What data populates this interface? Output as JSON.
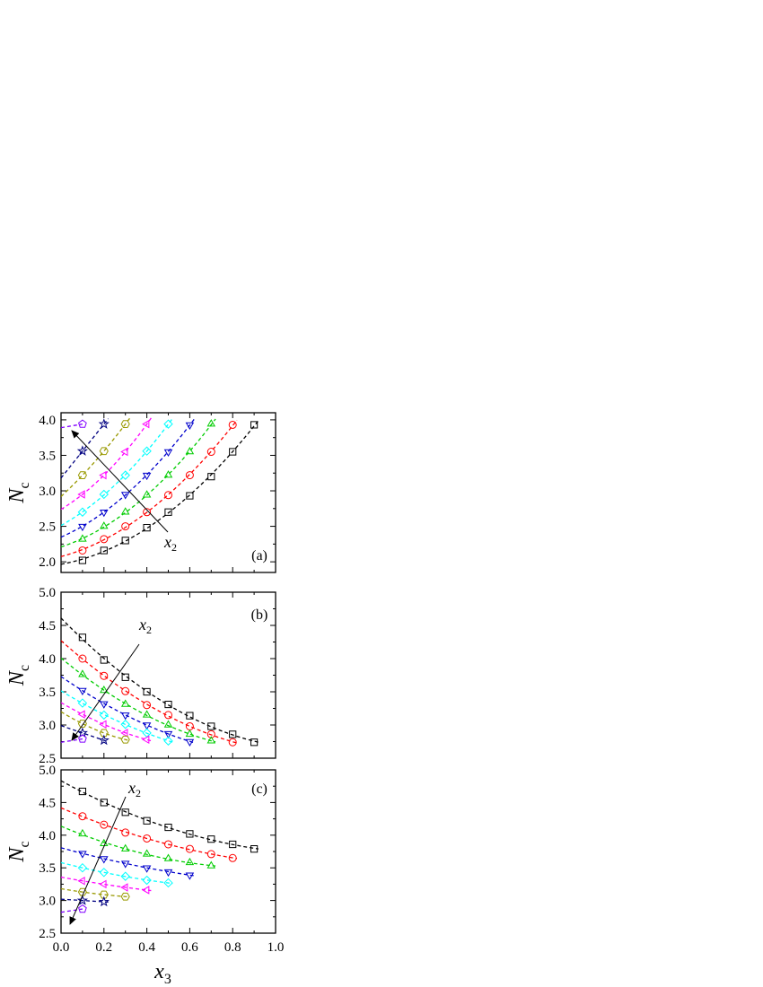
{
  "colors": [
    "#000000",
    "#ff0000",
    "#00cc00",
    "#0000cc",
    "#00ffff",
    "#ff00ff",
    "#999900",
    "#000080",
    "#8000ff"
  ],
  "markers": [
    "square",
    "circle",
    "triangle-up",
    "triangle-down",
    "diamond",
    "triangle-left",
    "hexagon",
    "star",
    "pentagon"
  ],
  "chart_data": [
    {
      "type": "scatter",
      "panel_label": "(a)",
      "xlabel": "",
      "ylabel": "N",
      "ylabel_sub": "c",
      "xlim": [
        0.0,
        1.0
      ],
      "ylim": [
        1.85,
        4.1
      ],
      "yticks": [
        "2.0",
        "2.5",
        "3.0",
        "3.5",
        "4.0"
      ],
      "arrow_label": "x",
      "arrow_label_sub": "2",
      "series": [
        {
          "x": [
            0.1,
            0.2,
            0.3,
            0.4,
            0.5,
            0.6,
            0.7,
            0.8,
            0.9
          ],
          "values": [
            2.02,
            2.16,
            2.3,
            2.48,
            2.7,
            2.93,
            3.2,
            3.55,
            3.93
          ]
        },
        {
          "x": [
            0.1,
            0.2,
            0.3,
            0.4,
            0.5,
            0.6,
            0.7,
            0.8
          ],
          "values": [
            2.16,
            2.32,
            2.5,
            2.7,
            2.94,
            3.22,
            3.55,
            3.93
          ]
        },
        {
          "x": [
            0.1,
            0.2,
            0.3,
            0.4,
            0.5,
            0.6,
            0.7
          ],
          "values": [
            2.32,
            2.5,
            2.7,
            2.94,
            3.22,
            3.55,
            3.94
          ]
        },
        {
          "x": [
            0.1,
            0.2,
            0.3,
            0.4,
            0.5,
            0.6
          ],
          "values": [
            2.5,
            2.7,
            2.95,
            3.22,
            3.55,
            3.93
          ]
        },
        {
          "x": [
            0.1,
            0.2,
            0.3,
            0.4,
            0.5
          ],
          "values": [
            2.7,
            2.95,
            3.22,
            3.56,
            3.94
          ]
        },
        {
          "x": [
            0.1,
            0.2,
            0.3,
            0.4
          ],
          "values": [
            2.95,
            3.22,
            3.55,
            3.94
          ]
        },
        {
          "x": [
            0.1,
            0.2,
            0.3
          ],
          "values": [
            3.22,
            3.56,
            3.94
          ]
        },
        {
          "x": [
            0.1,
            0.2
          ],
          "values": [
            3.56,
            3.94
          ]
        },
        {
          "x": [
            0.1
          ],
          "values": [
            3.94
          ]
        }
      ]
    },
    {
      "type": "scatter",
      "panel_label": "(b)",
      "xlabel": "",
      "ylabel": "N",
      "ylabel_sub": "c",
      "xlim": [
        0.0,
        1.0
      ],
      "ylim": [
        2.5,
        5.0
      ],
      "yticks": [
        "2.5",
        "3.0",
        "3.5",
        "4.0",
        "4.5",
        "5.0"
      ],
      "arrow_label": "x",
      "arrow_label_sub": "2",
      "series": [
        {
          "x": [
            0.1,
            0.2,
            0.3,
            0.4,
            0.5,
            0.6,
            0.7,
            0.8,
            0.9
          ],
          "values": [
            4.32,
            3.98,
            3.72,
            3.5,
            3.31,
            3.14,
            2.98,
            2.86,
            2.74
          ]
        },
        {
          "x": [
            0.1,
            0.2,
            0.3,
            0.4,
            0.5,
            0.6,
            0.7,
            0.8
          ],
          "values": [
            4.0,
            3.74,
            3.51,
            3.3,
            3.15,
            2.98,
            2.86,
            2.74
          ]
        },
        {
          "x": [
            0.1,
            0.2,
            0.3,
            0.4,
            0.5,
            0.6,
            0.7
          ],
          "values": [
            3.76,
            3.52,
            3.31,
            3.15,
            3.0,
            2.86,
            2.76
          ]
        },
        {
          "x": [
            0.1,
            0.2,
            0.3,
            0.4,
            0.5,
            0.6
          ],
          "values": [
            3.52,
            3.32,
            3.15,
            3.0,
            2.87,
            2.75
          ]
        },
        {
          "x": [
            0.1,
            0.2,
            0.3,
            0.4,
            0.5
          ],
          "values": [
            3.33,
            3.15,
            3.01,
            2.88,
            2.76
          ]
        },
        {
          "x": [
            0.1,
            0.2,
            0.3,
            0.4
          ],
          "values": [
            3.16,
            3.01,
            2.88,
            2.78
          ]
        },
        {
          "x": [
            0.1,
            0.2,
            0.3
          ],
          "values": [
            3.02,
            2.88,
            2.78
          ]
        },
        {
          "x": [
            0.1,
            0.2
          ],
          "values": [
            2.88,
            2.77
          ]
        },
        {
          "x": [
            0.1
          ],
          "values": [
            2.79
          ]
        }
      ]
    },
    {
      "type": "scatter",
      "panel_label": "(c)",
      "xlabel": "x",
      "xlabel_sub": "3",
      "ylabel": "N",
      "ylabel_sub": "c",
      "xlim": [
        0.0,
        1.0
      ],
      "ylim": [
        2.5,
        5.0
      ],
      "xticks": [
        "0.0",
        "0.2",
        "0.4",
        "0.6",
        "0.8",
        "1.0"
      ],
      "yticks": [
        "2.5",
        "3.0",
        "3.5",
        "4.0",
        "4.5",
        "5.0"
      ],
      "arrow_label": "x",
      "arrow_label_sub": "2",
      "series": [
        {
          "x": [
            0.1,
            0.2,
            0.3,
            0.4,
            0.5,
            0.6,
            0.7,
            0.8,
            0.9
          ],
          "values": [
            4.67,
            4.5,
            4.35,
            4.22,
            4.12,
            4.02,
            3.94,
            3.86,
            3.79
          ]
        },
        {
          "x": [
            0.1,
            0.2,
            0.3,
            0.4,
            0.5,
            0.6,
            0.7,
            0.8
          ],
          "values": [
            4.29,
            4.16,
            4.04,
            3.95,
            3.86,
            3.79,
            3.71,
            3.65
          ]
        },
        {
          "x": [
            0.1,
            0.2,
            0.3,
            0.4,
            0.5,
            0.6,
            0.7
          ],
          "values": [
            4.02,
            3.87,
            3.79,
            3.71,
            3.64,
            3.58,
            3.53
          ]
        },
        {
          "x": [
            0.1,
            0.2,
            0.3,
            0.4,
            0.5,
            0.6
          ],
          "values": [
            3.72,
            3.64,
            3.57,
            3.5,
            3.44,
            3.39
          ]
        },
        {
          "x": [
            0.1,
            0.2,
            0.3,
            0.4,
            0.5
          ],
          "values": [
            3.5,
            3.43,
            3.37,
            3.31,
            3.27
          ]
        },
        {
          "x": [
            0.1,
            0.2,
            0.3,
            0.4
          ],
          "values": [
            3.3,
            3.25,
            3.2,
            3.16
          ]
        },
        {
          "x": [
            0.1,
            0.2,
            0.3
          ],
          "values": [
            3.13,
            3.09,
            3.06
          ]
        },
        {
          "x": [
            0.1,
            0.2
          ],
          "values": [
            3.0,
            2.98
          ]
        },
        {
          "x": [
            0.1
          ],
          "values": [
            2.87
          ]
        }
      ]
    }
  ]
}
